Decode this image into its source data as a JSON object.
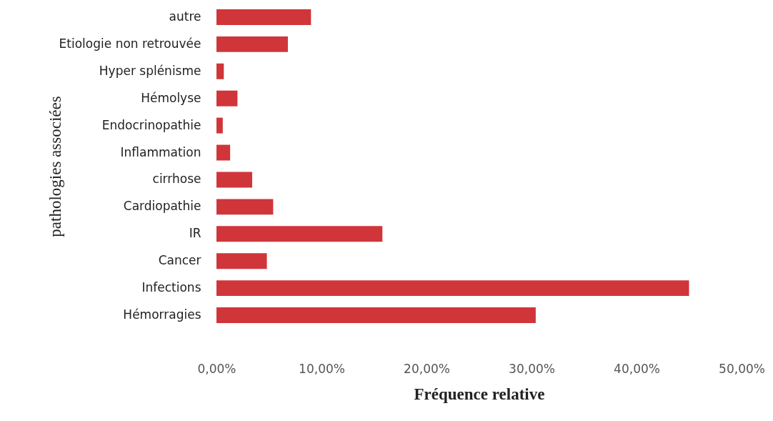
{
  "chart_data": {
    "type": "bar",
    "orientation": "horizontal",
    "xlabel": "Fréquence relative",
    "ylabel": "pathologies associées",
    "categories": [
      "autre",
      "Etiologie non retrouvée",
      "Hyper splénisme",
      "Hémolyse",
      "Endocrinopathie",
      "Inflammation",
      "cirrhose",
      "Cardiopathie",
      "IR",
      "Cancer",
      "Infections",
      "Hémorragies"
    ],
    "values": [
      9.0,
      6.8,
      0.7,
      2.0,
      0.6,
      1.3,
      3.4,
      5.4,
      15.8,
      4.8,
      45.0,
      30.4
    ],
    "color": "#d0353a",
    "xlim": [
      0,
      50
    ],
    "xticks": [
      {
        "value": 0,
        "label": "0,00%"
      },
      {
        "value": 10,
        "label": "10,00%"
      },
      {
        "value": 20,
        "label": "20,00%"
      },
      {
        "value": 30,
        "label": "30,00%"
      },
      {
        "value": 40,
        "label": "40,00%"
      },
      {
        "value": 50,
        "label": "50,00%"
      }
    ],
    "grid": false
  }
}
